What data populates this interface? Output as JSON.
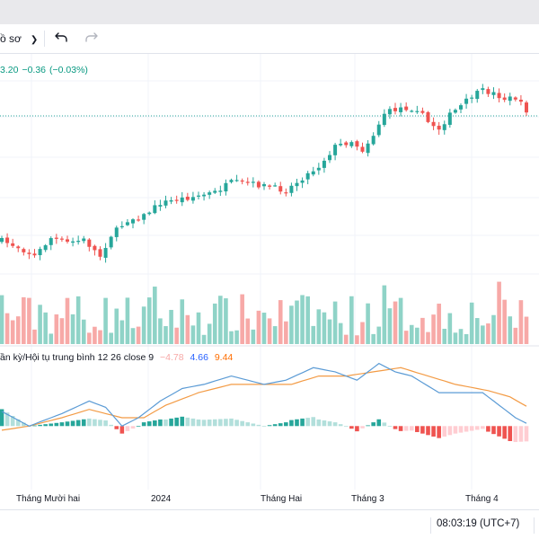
{
  "toolbar": {
    "profile_label": "ồ sơ",
    "undo_icon": "undo-icon",
    "redo_icon": "redo-icon"
  },
  "quote": {
    "price": "3.20",
    "change": "−0.36",
    "change_pct": "(−0.03%)"
  },
  "macd": {
    "title": "ần kỳ/Hội tụ trung bình",
    "params": "12 26 close 9",
    "histogram_value": "−4.78",
    "macd_value": "4.66",
    "signal_value": "9.44",
    "colors": {
      "histogram": "#f7a9a7",
      "macd": "#2962ff",
      "signal": "#ff6d00"
    }
  },
  "footer": {
    "clock": "08:03:19 (UTC+7)"
  },
  "x_axis_labels": [
    "Tháng Mười hai",
    "2024",
    "Tháng Hai",
    "Tháng 3",
    "Tháng 4"
  ],
  "colors": {
    "up": "#26a69a",
    "down": "#ef5350",
    "up_volume": "#8fd3c7",
    "down_volume": "#f7a9a7",
    "macd_line": "#5b9bd5",
    "signal_line": "#f39b45",
    "grid": "#f0f3fa"
  },
  "chart_data": {
    "type": "candlestick",
    "x_ticks": [
      "Tháng Mười hai",
      "2024",
      "Tháng Hai",
      "Tháng 3",
      "Tháng 4"
    ],
    "price_anchors": [
      [
        0,
        268
      ],
      [
        3,
        275
      ],
      [
        6,
        285
      ],
      [
        9,
        265
      ],
      [
        12,
        270
      ],
      [
        15,
        267
      ],
      [
        18,
        285
      ],
      [
        20,
        262
      ],
      [
        23,
        245
      ],
      [
        26,
        240
      ],
      [
        29,
        226
      ],
      [
        33,
        221
      ],
      [
        36,
        218
      ],
      [
        39,
        214
      ],
      [
        42,
        203
      ],
      [
        45,
        204
      ],
      [
        49,
        208
      ],
      [
        52,
        212
      ],
      [
        55,
        198
      ],
      [
        58,
        185
      ],
      [
        61,
        163
      ],
      [
        64,
        157
      ],
      [
        66,
        167
      ],
      [
        68,
        150
      ],
      [
        70,
        126
      ],
      [
        73,
        120
      ],
      [
        76,
        121
      ],
      [
        78,
        136
      ],
      [
        80,
        143
      ],
      [
        82,
        128
      ],
      [
        84,
        118
      ],
      [
        86,
        107
      ],
      [
        88,
        101
      ],
      [
        90,
        104
      ],
      [
        92,
        110
      ],
      [
        94,
        109
      ],
      [
        97,
        130
      ]
    ],
    "volume_range": [
      0.12,
      0.95
    ],
    "macd_range": [
      -12,
      16
    ],
    "macd_line_anchors": [
      [
        0,
        3.5
      ],
      [
        5,
        0
      ],
      [
        11,
        3
      ],
      [
        16,
        6
      ],
      [
        19,
        4.5
      ],
      [
        22,
        0
      ],
      [
        25,
        2
      ],
      [
        29,
        6
      ],
      [
        33,
        9
      ],
      [
        37,
        10
      ],
      [
        42,
        12
      ],
      [
        48,
        10
      ],
      [
        52,
        11
      ],
      [
        57,
        14
      ],
      [
        61,
        13
      ],
      [
        65,
        11
      ],
      [
        69,
        15
      ],
      [
        72,
        13
      ],
      [
        75,
        12
      ],
      [
        80,
        8
      ],
      [
        83,
        8
      ],
      [
        88,
        8
      ],
      [
        91,
        5
      ],
      [
        94,
        2
      ],
      [
        97,
        0
      ]
    ],
    "signal_line_anchors": [
      [
        0,
        -1
      ],
      [
        5,
        0
      ],
      [
        11,
        2
      ],
      [
        16,
        4
      ],
      [
        22,
        2
      ],
      [
        26,
        2
      ],
      [
        30,
        5
      ],
      [
        36,
        8
      ],
      [
        42,
        10
      ],
      [
        48,
        10
      ],
      [
        53,
        10
      ],
      [
        58,
        12
      ],
      [
        63,
        12
      ],
      [
        68,
        13
      ],
      [
        73,
        14
      ],
      [
        78,
        12
      ],
      [
        83,
        10
      ],
      [
        89,
        8.5
      ],
      [
        93,
        7
      ],
      [
        97,
        4
      ]
    ]
  }
}
